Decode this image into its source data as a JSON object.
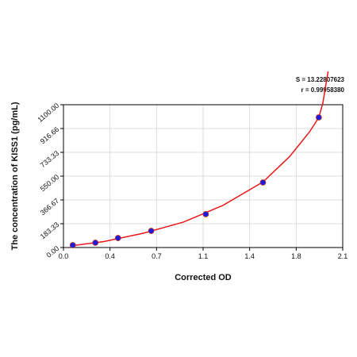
{
  "chart_data": {
    "type": "scatter",
    "xlabel": "Corrected OD",
    "ylabel": "The concentration of KISS1 (pg/mL)",
    "annotations": [
      "S = 13.22807623",
      "r = 0.99958380"
    ],
    "xlim": [
      0,
      2.1
    ],
    "ylim": [
      0,
      1100
    ],
    "xticks": [
      {
        "value": 0,
        "label": "0.0"
      },
      {
        "value": 0.35,
        "label": "0.4"
      },
      0.7,
      {
        "value": 1.05,
        "label": "1.1"
      },
      1.4,
      {
        "value": 1.75,
        "label": "1.8"
      },
      2.1
    ],
    "yticks": [
      {
        "value": 0,
        "label": "0.00"
      },
      183.33,
      366.67,
      {
        "value": 550,
        "label": "550.00"
      },
      733.33,
      916.66,
      {
        "value": 1100,
        "label": "1100.00"
      }
    ],
    "grid": true,
    "series": [
      {
        "type": "scatter",
        "color": "#1c1ce0",
        "x": [
          0.07,
          0.24,
          0.41,
          0.66,
          1.07,
          1.5,
          1.92
        ],
        "values": [
          18,
          37,
          73,
          128,
          257,
          501,
          1002
        ]
      },
      {
        "type": "line",
        "color": "#e8191b",
        "x": [
          0.05,
          0.3,
          0.6,
          0.9,
          1.2,
          1.5,
          1.7,
          1.85,
          1.92,
          1.95,
          1.99
        ],
        "values": [
          12,
          45,
          110,
          195,
          325,
          505,
          700,
          890,
          1002,
          1110,
          1357
        ]
      }
    ]
  }
}
